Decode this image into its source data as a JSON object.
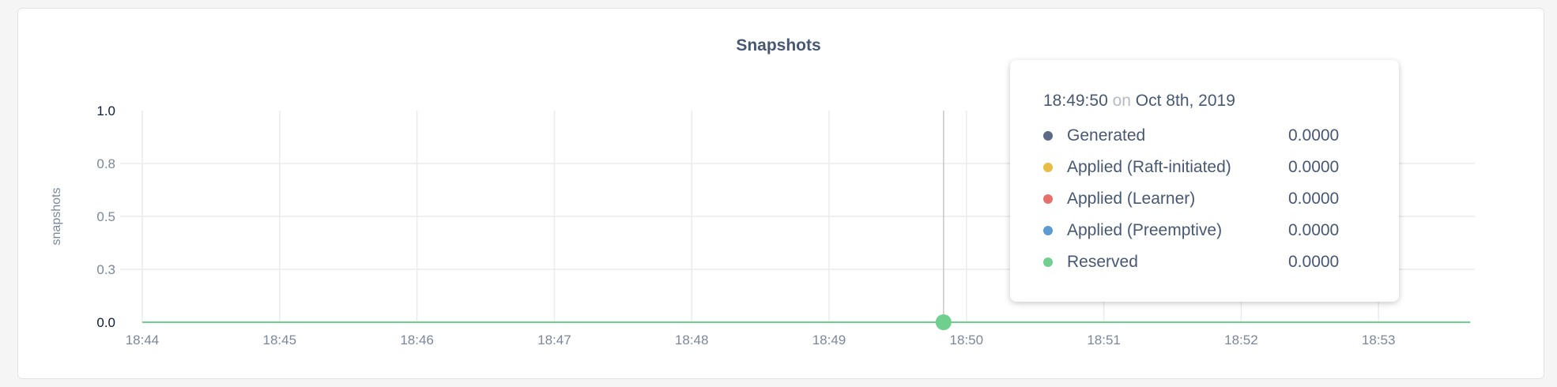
{
  "chart_data": {
    "type": "line",
    "title": "Snapshots",
    "ylabel": "snapshots",
    "xlabel": "",
    "ylim": [
      0,
      1.0
    ],
    "y_ticks": [
      "0.0",
      "0.3",
      "0.5",
      "0.8",
      "1.0"
    ],
    "y_tick_values": [
      0,
      0.25,
      0.5,
      0.75,
      1.0
    ],
    "x_ticks": [
      "18:44",
      "18:45",
      "18:46",
      "18:47",
      "18:48",
      "18:49",
      "18:50",
      "18:51",
      "18:52",
      "18:53"
    ],
    "xlim": [
      "18:44",
      "18:53:40"
    ],
    "grid": true,
    "series": [
      {
        "name": "Generated",
        "color": "#5d6a85",
        "values": [
          0,
          0,
          0,
          0,
          0,
          0,
          0,
          0,
          0,
          0
        ]
      },
      {
        "name": "Applied (Raft-initiated)",
        "color": "#e8bd46",
        "values": [
          0,
          0,
          0,
          0,
          0,
          0,
          0,
          0,
          0,
          0
        ]
      },
      {
        "name": "Applied (Learner)",
        "color": "#e4716b",
        "values": [
          0,
          0,
          0,
          0,
          0,
          0,
          0,
          0,
          0,
          0
        ]
      },
      {
        "name": "Applied (Preemptive)",
        "color": "#5b9bd1",
        "values": [
          0,
          0,
          0,
          0,
          0,
          0,
          0,
          0,
          0,
          0
        ]
      },
      {
        "name": "Reserved",
        "color": "#6fcf8f",
        "values": [
          0,
          0,
          0,
          0,
          0,
          0,
          0,
          0,
          0,
          0
        ]
      }
    ],
    "hover_x": "18:49:50"
  },
  "tooltip": {
    "time": "18:49:50",
    "on": "on",
    "date": "Oct 8th, 2019",
    "rows": [
      {
        "label": "Generated",
        "value": "0.0000",
        "color": "#5d6a85"
      },
      {
        "label": "Applied (Raft-initiated)",
        "value": "0.0000",
        "color": "#e8bd46"
      },
      {
        "label": "Applied (Learner)",
        "value": "0.0000",
        "color": "#e4716b"
      },
      {
        "label": "Applied (Preemptive)",
        "value": "0.0000",
        "color": "#5b9bd1"
      },
      {
        "label": "Reserved",
        "value": "0.0000",
        "color": "#6fcf8f"
      }
    ]
  }
}
